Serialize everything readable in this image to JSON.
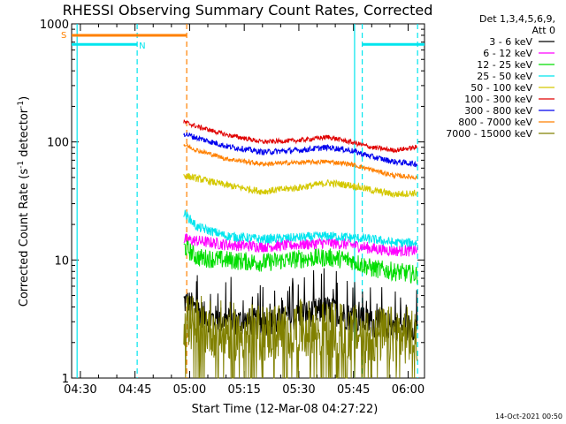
{
  "chart_data": {
    "type": "line",
    "title": "RHESSI Observing Summary Count Rates, Corrected",
    "xlabel": "Start Time (12-Mar-08 04:27:22)",
    "ylabel_prefix": "Corrected Count Rate (s",
    "ylabel_sup": "-1",
    "ylabel_mid": " detector",
    "ylabel_sup2": "-1",
    "ylabel_suffix": ")",
    "yscale": "log",
    "ylim": [
      1,
      1000
    ],
    "xlim_minutes": [
      -2.4,
      94.5
    ],
    "x_ticks": [
      "04:30",
      "04:45",
      "05:00",
      "05:15",
      "05:30",
      "05:45",
      "06:00"
    ],
    "x_tick_minutes": [
      0,
      15,
      30,
      45,
      60,
      75,
      90
    ],
    "y_ticks": [
      "1",
      "10",
      "100",
      "1000"
    ],
    "y_tick_values": [
      1,
      10,
      100,
      1000
    ],
    "legend_header": [
      "Det 1,3,4,5,6,9,",
      "Att 0"
    ],
    "legend_placement": "right",
    "data_start_minute": 28.4,
    "series": [
      {
        "name": "3 - 6 keV",
        "color": "#000000",
        "values": [
          [
            28.4,
            4.5
          ],
          [
            35,
            3.2
          ],
          [
            45,
            3.0
          ],
          [
            55,
            3.0
          ],
          [
            62,
            3.5
          ],
          [
            68,
            3.8
          ],
          [
            75,
            3.2
          ],
          [
            82,
            2.8
          ],
          [
            90,
            2.7
          ],
          [
            92.5,
            2.8
          ]
        ]
      },
      {
        "name": "6 - 12 keV",
        "color": "#ff00ff",
        "values": [
          [
            28.4,
            15
          ],
          [
            32,
            14.5
          ],
          [
            40,
            13.5
          ],
          [
            50,
            13
          ],
          [
            60,
            13.5
          ],
          [
            68,
            14
          ],
          [
            74,
            13.5
          ],
          [
            80,
            12.5
          ],
          [
            86,
            12
          ],
          [
            92.5,
            12
          ]
        ]
      },
      {
        "name": "12 - 25 keV",
        "color": "#00dd00",
        "values": [
          [
            28.4,
            13
          ],
          [
            32,
            10.5
          ],
          [
            40,
            10
          ],
          [
            50,
            9.5
          ],
          [
            60,
            10.2
          ],
          [
            68,
            10.5
          ],
          [
            74,
            10
          ],
          [
            80,
            8.5
          ],
          [
            86,
            8
          ],
          [
            92.5,
            7.5
          ]
        ]
      },
      {
        "name": "25 - 50 keV",
        "color": "#00e5ee",
        "values": [
          [
            28.4,
            25
          ],
          [
            32,
            19
          ],
          [
            40,
            16
          ],
          [
            50,
            15
          ],
          [
            60,
            15.5
          ],
          [
            68,
            16
          ],
          [
            74,
            15.5
          ],
          [
            80,
            15
          ],
          [
            86,
            14
          ],
          [
            92.5,
            14
          ]
        ]
      },
      {
        "name": "50 - 100 keV",
        "color": "#d4c800",
        "values": [
          [
            28.4,
            52
          ],
          [
            32,
            49
          ],
          [
            40,
            43
          ],
          [
            50,
            38
          ],
          [
            60,
            41
          ],
          [
            68,
            45
          ],
          [
            74,
            43
          ],
          [
            80,
            39
          ],
          [
            86,
            36
          ],
          [
            92.5,
            37
          ]
        ]
      },
      {
        "name": "100 - 300 keV",
        "color": "#e00000",
        "values": [
          [
            28.4,
            148
          ],
          [
            32,
            135
          ],
          [
            40,
            115
          ],
          [
            50,
            100
          ],
          [
            60,
            103
          ],
          [
            68,
            110
          ],
          [
            74,
            100
          ],
          [
            80,
            90
          ],
          [
            86,
            85
          ],
          [
            92.5,
            90
          ]
        ]
      },
      {
        "name": "300 - 800 keV",
        "color": "#0000ee",
        "values": [
          [
            28.4,
            118
          ],
          [
            32,
            108
          ],
          [
            40,
            92
          ],
          [
            50,
            82
          ],
          [
            60,
            85
          ],
          [
            68,
            90
          ],
          [
            74,
            85
          ],
          [
            80,
            75
          ],
          [
            86,
            68
          ],
          [
            92.5,
            65
          ]
        ]
      },
      {
        "name": "800 - 7000 keV",
        "color": "#ff8000",
        "values": [
          [
            28.4,
            95
          ],
          [
            32,
            85
          ],
          [
            40,
            72
          ],
          [
            50,
            65
          ],
          [
            60,
            67
          ],
          [
            68,
            68
          ],
          [
            74,
            65
          ],
          [
            80,
            58
          ],
          [
            86,
            52
          ],
          [
            92.5,
            50
          ]
        ]
      },
      {
        "name": "7000 - 15000 keV",
        "color": "#808000",
        "values": [
          [
            28.4,
            3.0
          ],
          [
            40,
            2.5
          ],
          [
            50,
            2.4
          ],
          [
            60,
            2.6
          ],
          [
            70,
            2.5
          ],
          [
            80,
            2.3
          ],
          [
            92.5,
            2.3
          ]
        ]
      }
    ],
    "flag_bars": [
      {
        "label": "S",
        "color": "#ff8000",
        "start_minute": -2.4,
        "end_minute": 29.2,
        "level": 800
      },
      {
        "label": "N",
        "color": "#00e5ee",
        "start_minute": -2.4,
        "end_minute": 15.6,
        "level": 670
      },
      {
        "label": "",
        "color": "#00e5ee",
        "start_minute": 77.4,
        "end_minute": 94.5,
        "level": 670
      }
    ],
    "vertical_markers": [
      {
        "color": "#00e5ee",
        "minute": -0.9,
        "style": "solid"
      },
      {
        "color": "#00e5ee",
        "minute": 15.6,
        "style": "dashed"
      },
      {
        "color": "#ff8000",
        "minute": 29.2,
        "style": "dashed"
      },
      {
        "color": "#00e5ee",
        "minute": 75.3,
        "style": "solid"
      },
      {
        "color": "#00e5ee",
        "minute": 77.4,
        "style": "dashed"
      },
      {
        "color": "#00e5ee",
        "minute": 92.6,
        "style": "dashed"
      }
    ]
  },
  "footer": {
    "timestamp": "14-Oct-2021 00:50"
  }
}
